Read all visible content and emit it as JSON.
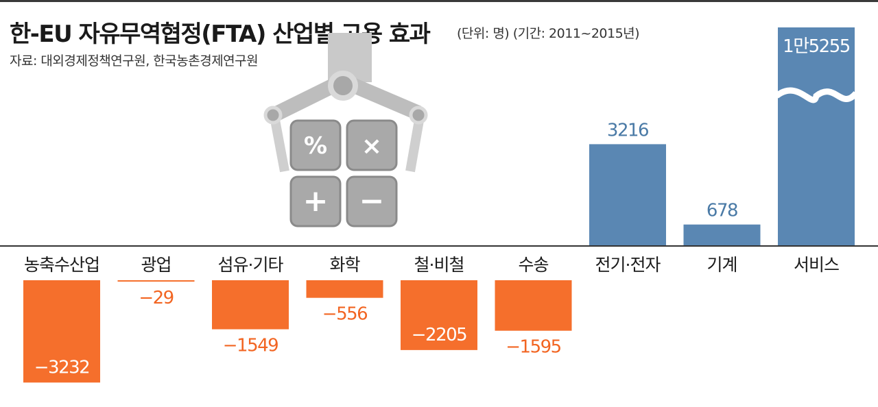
{
  "header": {
    "title": "한-EU 자유무역협정(FTA) 산업별 고용 효과",
    "unit_note": "(단위: 명)  (기간: 2011~2015년)",
    "source": "자료: 대외경제정책연구원, 한국농촌경제연구원"
  },
  "illustration": {
    "keys": [
      "%",
      "×",
      "+",
      "−"
    ]
  },
  "colors": {
    "positive": "#5a87b3",
    "negative": "#f56f2c",
    "baseline": "#333333"
  },
  "chart_data": {
    "type": "bar",
    "title": "한-EU 자유무역협정(FTA) 산업별 고용 효과",
    "xlabel": "",
    "ylabel": "",
    "unit": "명",
    "categories": [
      "농축수산업",
      "광업",
      "섬유·기타",
      "화학",
      "철·비철",
      "수송",
      "전기·전자",
      "기계",
      "서비스"
    ],
    "values": [
      -3232,
      -29,
      -1549,
      -556,
      -2205,
      -1595,
      3216,
      678,
      15255
    ],
    "value_labels": [
      "−3232",
      "−29",
      "−1549",
      "−556",
      "−2205",
      "−1595",
      "3216",
      "678",
      "1만5255"
    ],
    "axis_break_on": "서비스",
    "grid": false,
    "legend": "none"
  }
}
